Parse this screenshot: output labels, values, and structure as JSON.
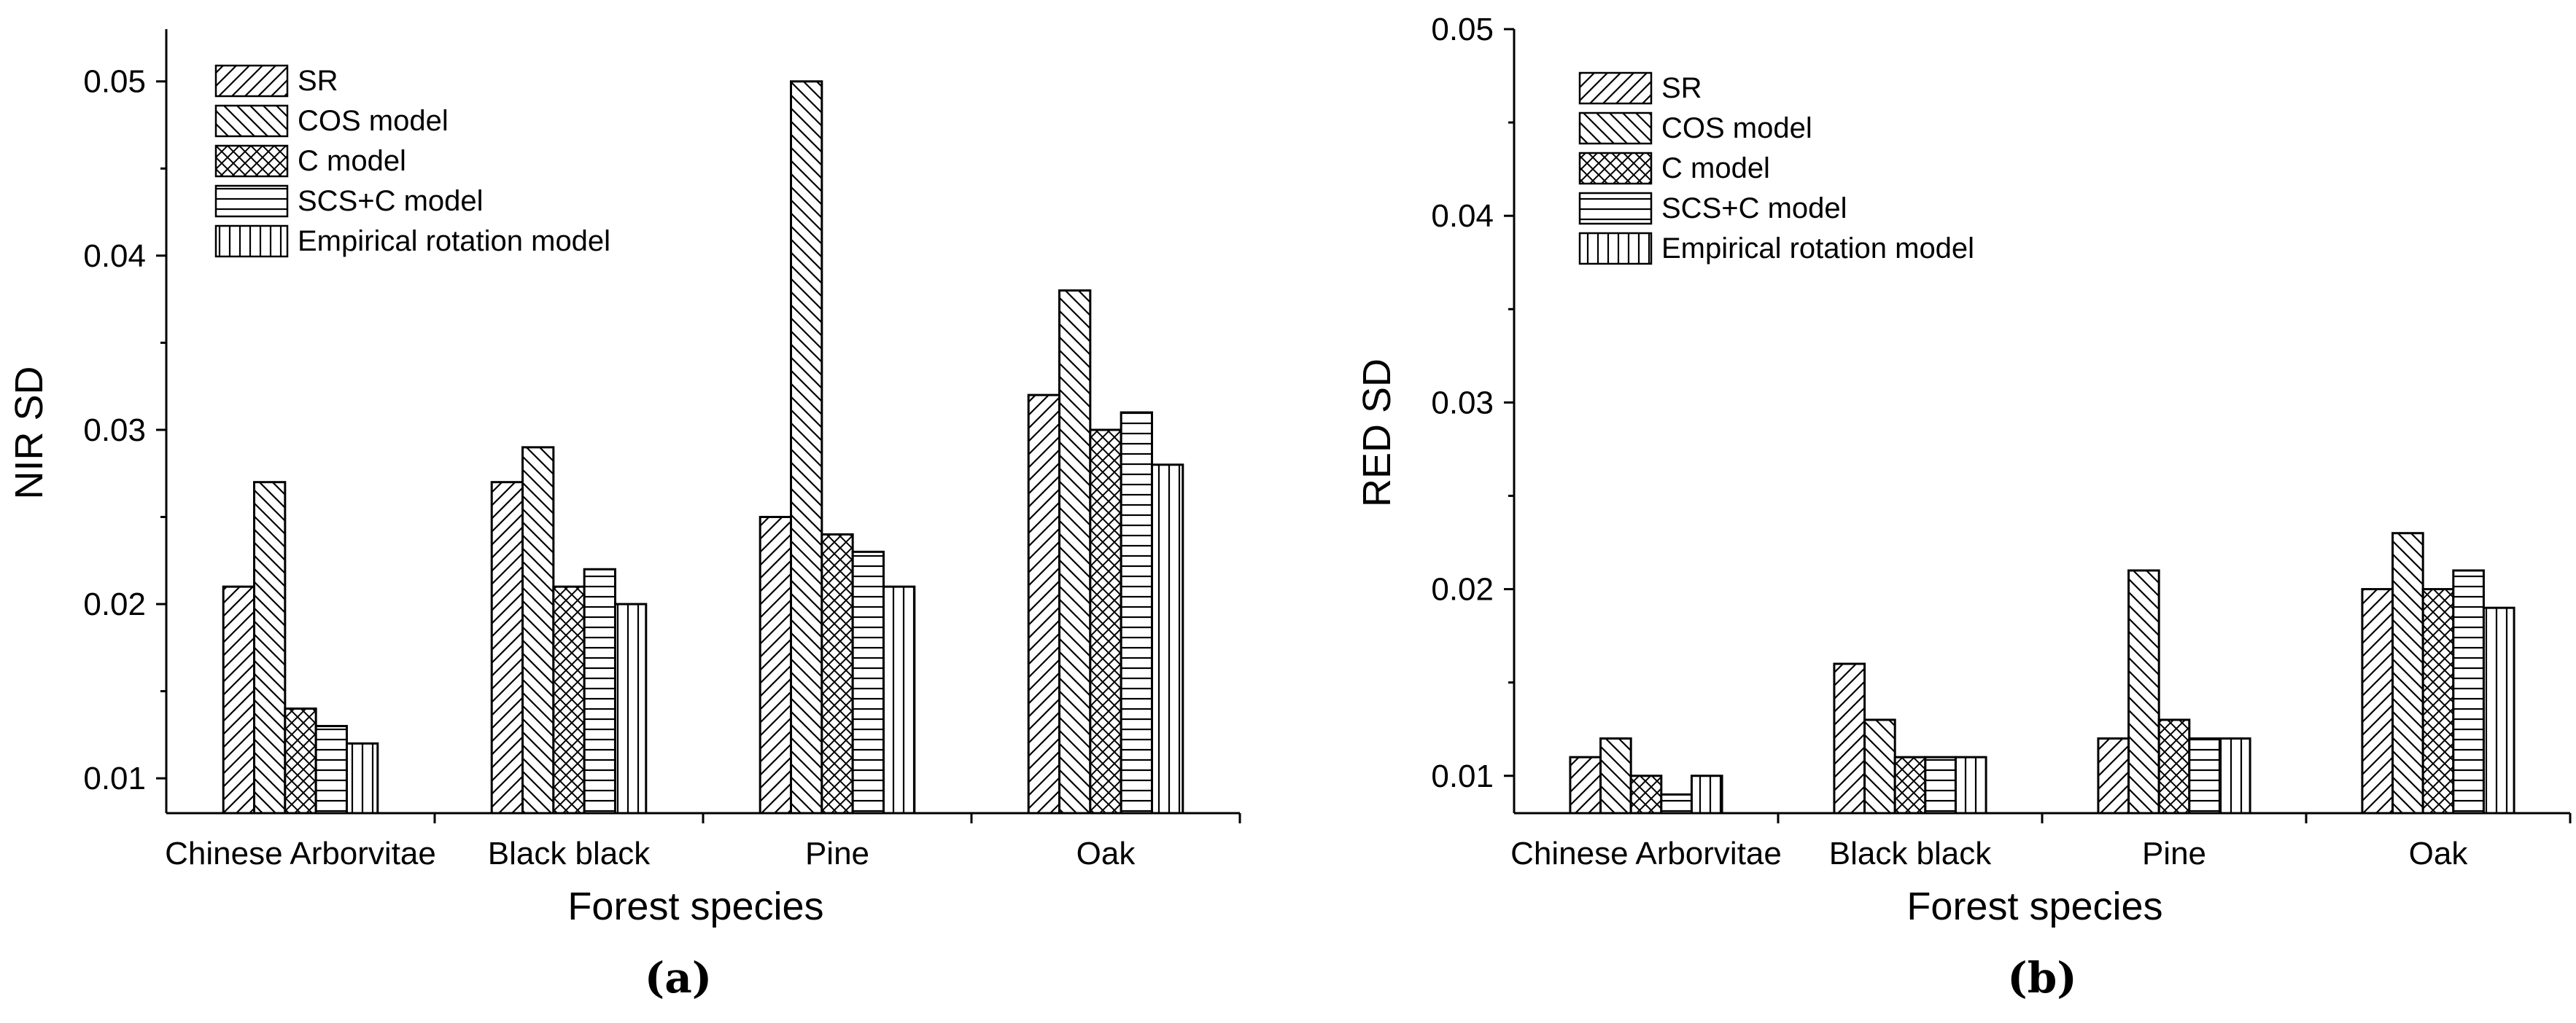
{
  "chart_data": [
    {
      "type": "bar",
      "caption": "(a)",
      "xlabel": "Forest species",
      "ylabel": "NIR SD",
      "ylim": [
        0.008,
        0.053
      ],
      "yticks": [
        "0.01",
        "0.02",
        "0.03",
        "0.04",
        "0.05"
      ],
      "categories": [
        "Chinese Arborvitae",
        "Black black",
        "Pine",
        "Oak"
      ],
      "series": [
        {
          "name": "SR",
          "pattern": "diag-fwd",
          "values": [
            0.021,
            0.027,
            0.025,
            0.032
          ]
        },
        {
          "name": "COS model",
          "pattern": "diag-back",
          "values": [
            0.027,
            0.029,
            0.05,
            0.038
          ]
        },
        {
          "name": "C model",
          "pattern": "cross",
          "values": [
            0.014,
            0.021,
            0.024,
            0.03
          ]
        },
        {
          "name": "SCS+C model",
          "pattern": "horiz",
          "values": [
            0.013,
            0.022,
            0.023,
            0.031
          ]
        },
        {
          "name": "Empirical rotation model",
          "pattern": "vert",
          "values": [
            0.012,
            0.02,
            0.021,
            0.028
          ]
        }
      ]
    },
    {
      "type": "bar",
      "caption": "(b)",
      "xlabel": "Forest species",
      "ylabel": "RED SD",
      "ylim": [
        0.008,
        0.05
      ],
      "yticks": [
        "0.01",
        "0.02",
        "0.03",
        "0.04",
        "0.05"
      ],
      "categories": [
        "Chinese Arborvitae",
        "Black black",
        "Pine",
        "Oak"
      ],
      "series": [
        {
          "name": "SR",
          "pattern": "diag-fwd",
          "values": [
            0.011,
            0.016,
            0.012,
            0.02
          ]
        },
        {
          "name": "COS model",
          "pattern": "diag-back",
          "values": [
            0.012,
            0.013,
            0.021,
            0.023
          ]
        },
        {
          "name": "C model",
          "pattern": "cross",
          "values": [
            0.01,
            0.011,
            0.013,
            0.02
          ]
        },
        {
          "name": "SCS+C model",
          "pattern": "horiz",
          "values": [
            0.009,
            0.011,
            0.012,
            0.021
          ]
        },
        {
          "name": "Empirical rotation model",
          "pattern": "vert",
          "values": [
            0.01,
            0.011,
            0.012,
            0.019
          ]
        }
      ]
    }
  ]
}
